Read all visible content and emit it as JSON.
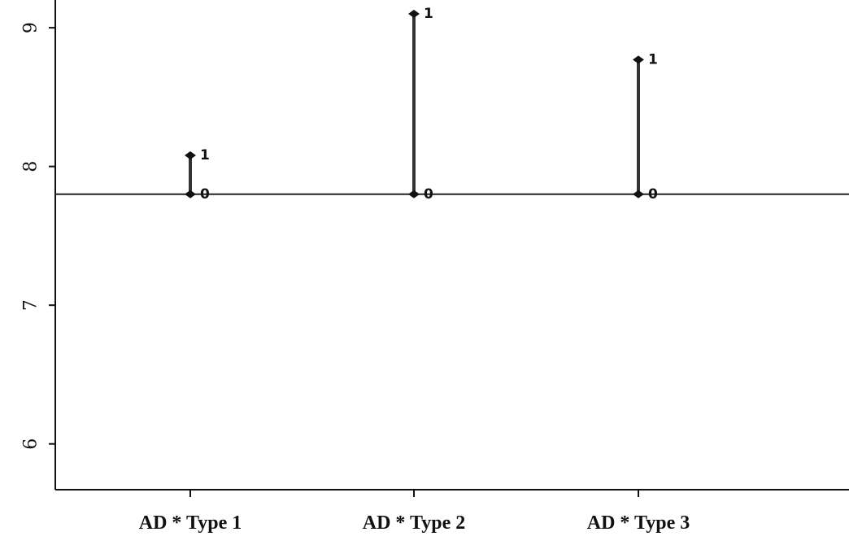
{
  "chart_data": {
    "type": "scatter",
    "title": "",
    "xlabel": "",
    "ylabel": "",
    "categories": [
      "AD * Type 1",
      "AD * Type 2",
      "AD * Type 3"
    ],
    "ylim": [
      5.67,
      9.2
    ],
    "yticks": [
      6,
      7,
      8,
      9
    ],
    "ytick_labels": [
      "6",
      "7",
      "8",
      "9"
    ],
    "reference_line": 7.8,
    "grid": false,
    "legend": "none",
    "series": [
      {
        "name": "0",
        "values": [
          7.8,
          7.8,
          7.8
        ]
      },
      {
        "name": "1",
        "values": [
          8.08,
          9.1,
          8.77
        ]
      }
    ]
  }
}
